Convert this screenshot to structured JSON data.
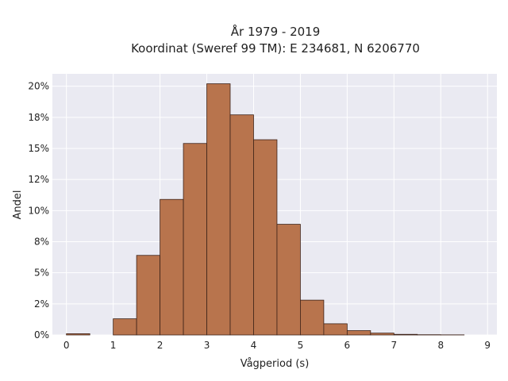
{
  "chart_data": {
    "type": "bar",
    "title_lines": [
      "År 1979 - 2019",
      "Koordinat (Sweref 99 TM): E 234681, N 6206770"
    ],
    "xlabel": "Vågperiod (s)",
    "ylabel": "Andel",
    "bin_width": 0.5,
    "bin_starts": [
      0,
      0.5,
      1,
      1.5,
      2,
      2.5,
      3,
      3.5,
      4,
      4.5,
      5,
      5.5,
      6,
      6.5,
      7,
      7.5,
      8
    ],
    "values": [
      0.1,
      0,
      1.3,
      6.4,
      10.9,
      15.4,
      20.2,
      17.7,
      15.7,
      8.9,
      2.8,
      0.9,
      0.35,
      0.15,
      0.05,
      0.02,
      0.01
    ],
    "xlim": [
      -0.3,
      9.2
    ],
    "ylim": [
      0,
      21
    ],
    "xticks": [
      0,
      1,
      2,
      3,
      4,
      5,
      6,
      7,
      8,
      9
    ],
    "xtick_labels": [
      "0",
      "1",
      "2",
      "3",
      "4",
      "5",
      "6",
      "7",
      "8",
      "9"
    ],
    "yticks": [
      0,
      2.5,
      5,
      7.5,
      10,
      12.5,
      15,
      17.5,
      20
    ],
    "ytick_labels": [
      "0%",
      "2%",
      "5%",
      "8%",
      "10%",
      "12%",
      "15%",
      "18%",
      "20%"
    ],
    "grid": true,
    "colors": {
      "bar_fill": "#b8744d",
      "bar_edge": "#3d2218",
      "plot_bg": "#eaeaf2",
      "grid": "#ffffff"
    }
  }
}
